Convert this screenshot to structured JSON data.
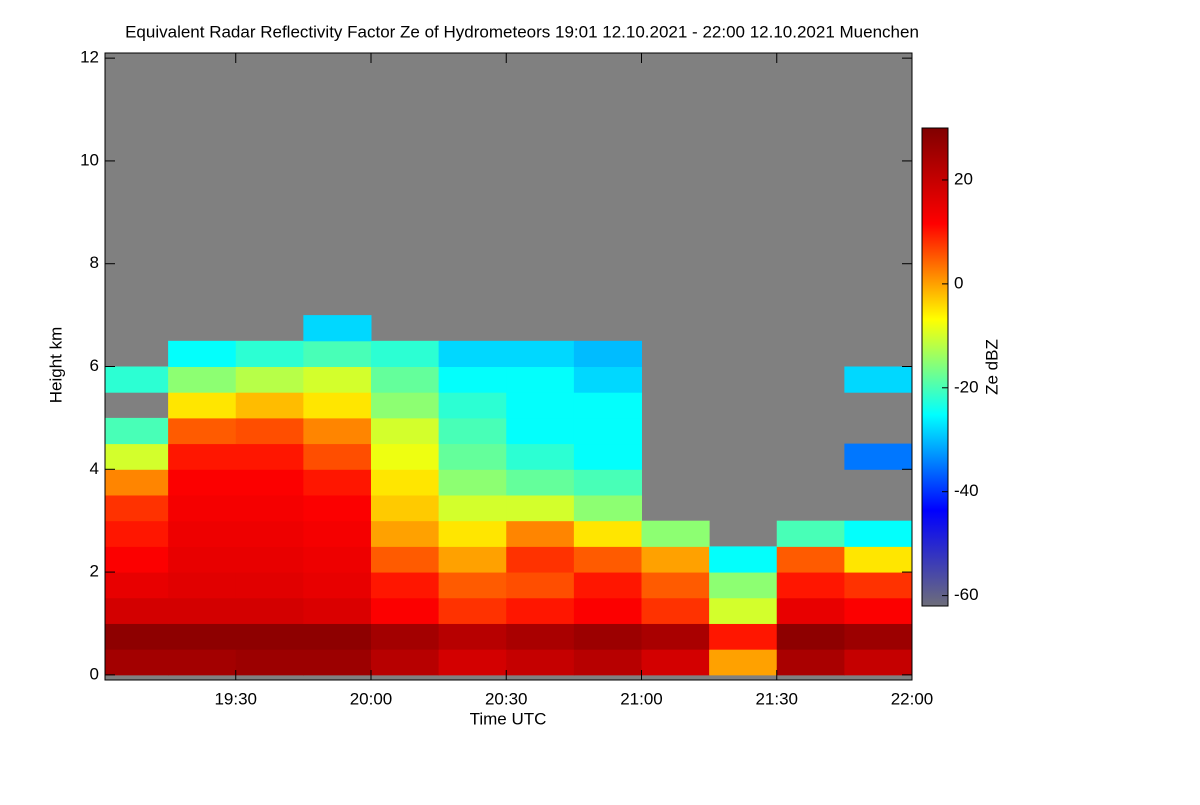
{
  "chart_data": {
    "type": "heatmap",
    "title": "Equivalent Radar Reflectivity Factor Ze of Hydrometeors   19:01 12.10.2021 - 22:00 12.10.2021 Muenchen",
    "xlabel": "Time UTC",
    "ylabel": "Height km",
    "colorbar_label": "Ze dBZ",
    "x_bins": [
      1141,
      1155,
      1170,
      1185,
      1200,
      1215,
      1230,
      1245,
      1260,
      1275,
      1290,
      1305,
      1320
    ],
    "y_bins": [
      0,
      0.5,
      1,
      1.5,
      2,
      2.5,
      3,
      3.5,
      4,
      4.5,
      5,
      5.5,
      6,
      6.5,
      7
    ],
    "values": [
      [
        25,
        25,
        26,
        26,
        22,
        18,
        20,
        22,
        18,
        0,
        24,
        20
      ],
      [
        28,
        28,
        28,
        28,
        25,
        22,
        24,
        26,
        24,
        10,
        28,
        26
      ],
      [
        18,
        18,
        18,
        17,
        12,
        8,
        10,
        12,
        8,
        -10,
        15,
        12
      ],
      [
        15,
        16,
        16,
        15,
        10,
        5,
        6,
        10,
        5,
        -15,
        10,
        8
      ],
      [
        12,
        15,
        15,
        14,
        5,
        0,
        8,
        5,
        0,
        -25,
        5,
        -5
      ],
      [
        10,
        14,
        14,
        13,
        0,
        -5,
        2,
        -5,
        -15,
        null,
        -20,
        -25
      ],
      [
        8,
        13,
        13,
        12,
        -3,
        -10,
        -10,
        -15,
        null,
        null,
        null,
        null
      ],
      [
        2,
        12,
        12,
        10,
        -5,
        -15,
        -18,
        -20,
        null,
        null,
        null,
        null
      ],
      [
        -10,
        10,
        10,
        6,
        -8,
        -18,
        -22,
        -25,
        null,
        null,
        null,
        -35
      ],
      [
        -20,
        5,
        6,
        2,
        -10,
        -20,
        -25,
        -25,
        null,
        null,
        null,
        null
      ],
      [
        null,
        -5,
        -2,
        -5,
        -15,
        -22,
        -25,
        -25,
        null,
        null,
        null,
        null
      ],
      [
        -22,
        -15,
        -12,
        -10,
        -18,
        -25,
        -25,
        -28,
        null,
        null,
        null,
        -28
      ],
      [
        null,
        -25,
        -22,
        -20,
        -22,
        -28,
        -28,
        -30,
        null,
        null,
        null,
        null
      ],
      [
        null,
        null,
        null,
        -28,
        null,
        null,
        null,
        null,
        null,
        null,
        null,
        null
      ]
    ],
    "xlim": [
      1141,
      1320
    ],
    "ylim": [
      -0.1,
      12.1
    ],
    "zlim": [
      -62,
      30
    ],
    "xticks": [
      {
        "value": 1170,
        "label": "19:30"
      },
      {
        "value": 1200,
        "label": "20:00"
      },
      {
        "value": 1230,
        "label": "20:30"
      },
      {
        "value": 1260,
        "label": "21:00"
      },
      {
        "value": 1290,
        "label": "21:30"
      },
      {
        "value": 1320,
        "label": "22:00"
      }
    ],
    "yticks": [
      0,
      2,
      4,
      6,
      8,
      10,
      12
    ],
    "colorbar_ticks": [
      20,
      0,
      -20,
      -40,
      -60
    ],
    "colormap": [
      "#6e6e7a",
      "#0000ff",
      "#00ffff",
      "#ffff00",
      "#ff0000",
      "#800000"
    ],
    "background_color": "#808080"
  }
}
